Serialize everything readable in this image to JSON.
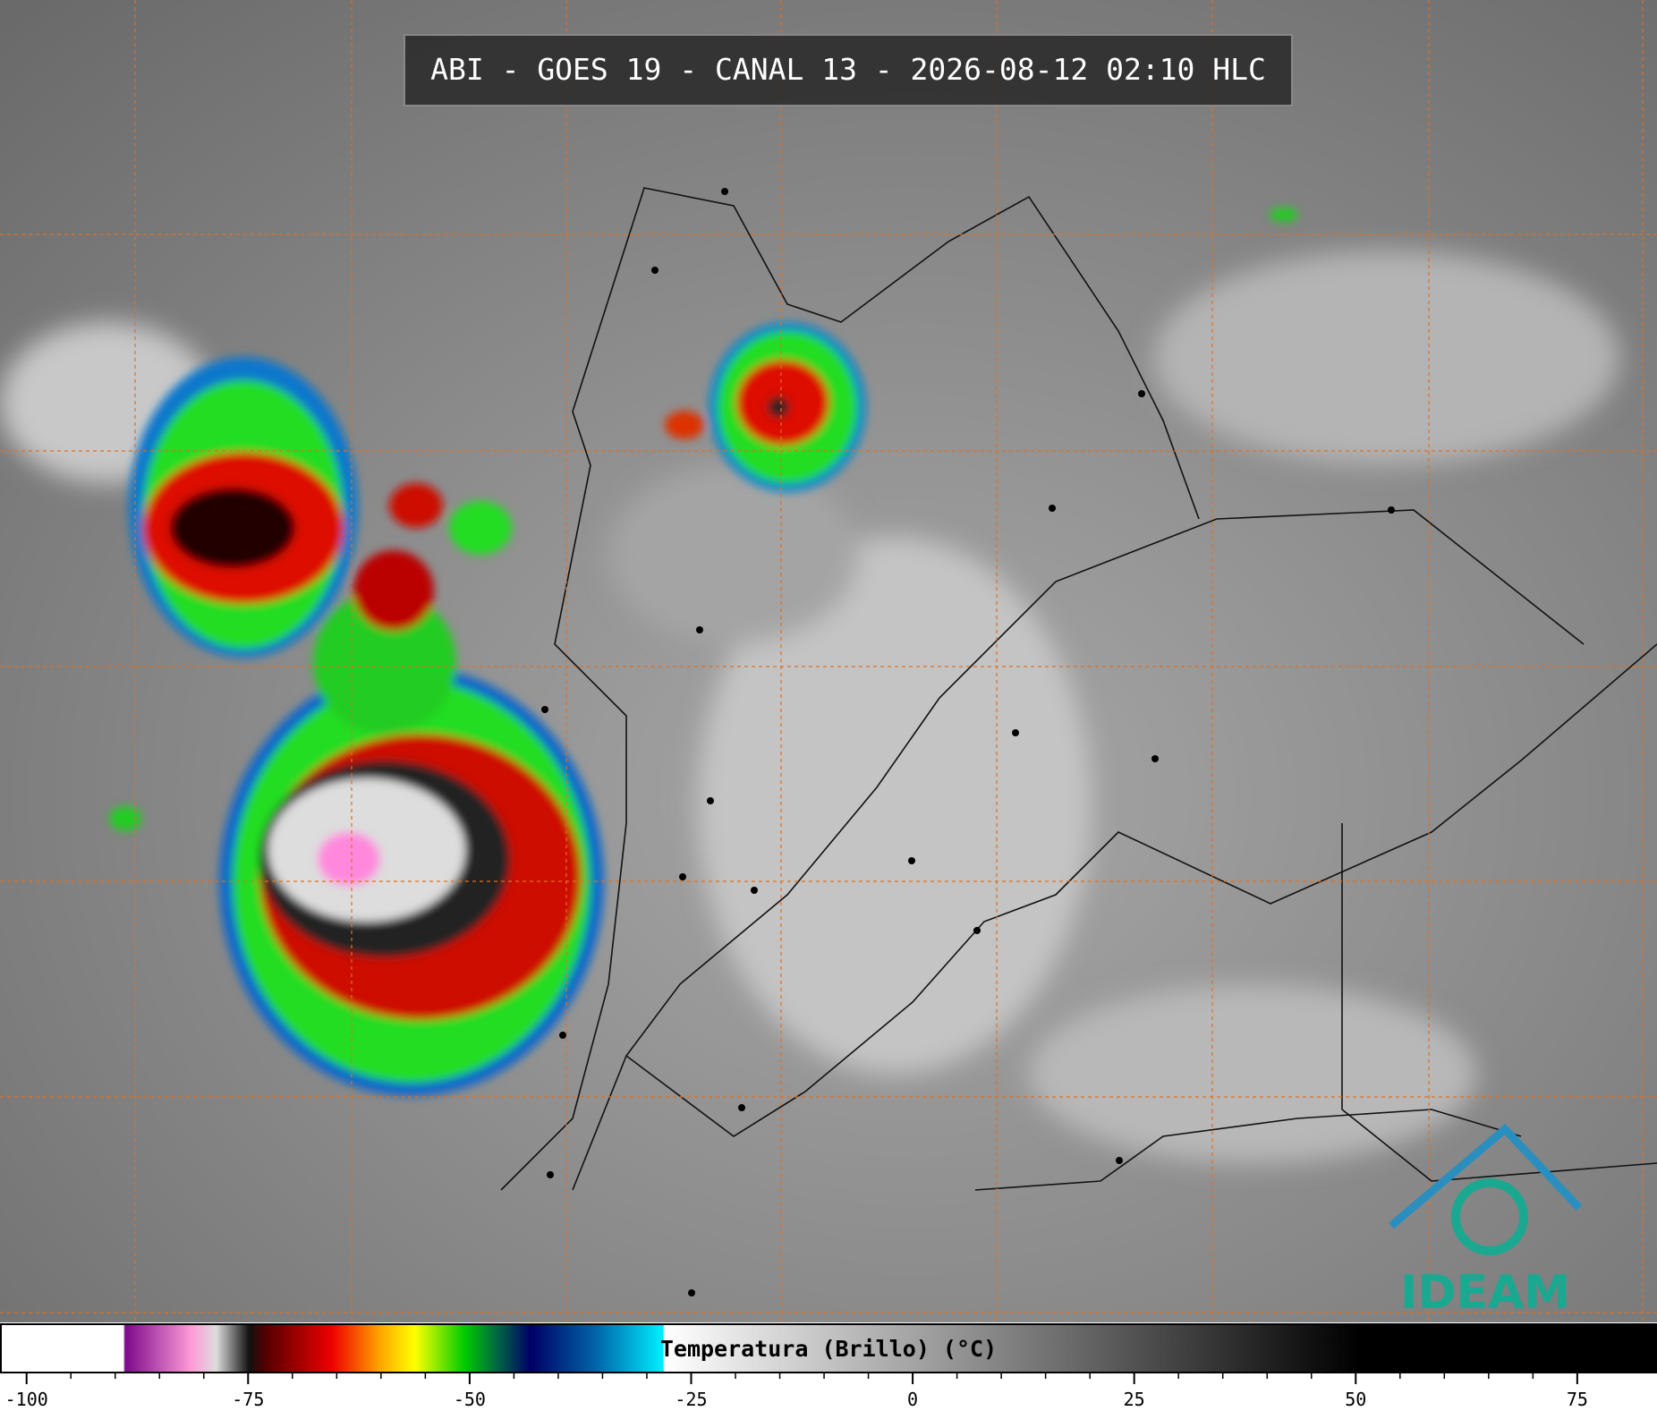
{
  "header": {
    "title": "ABI - GOES 19 - CANAL 13 - 2026-08-12 02:10 HLC"
  },
  "chart_data": {
    "type": "colorbar",
    "title": "Temperatura (Brillo) (°C)",
    "xlim": [
      -103,
      84
    ],
    "xticks": [
      -100,
      -75,
      -50,
      -25,
      0,
      25,
      50,
      75
    ]
  },
  "logo": {
    "text": "IDEAM"
  }
}
